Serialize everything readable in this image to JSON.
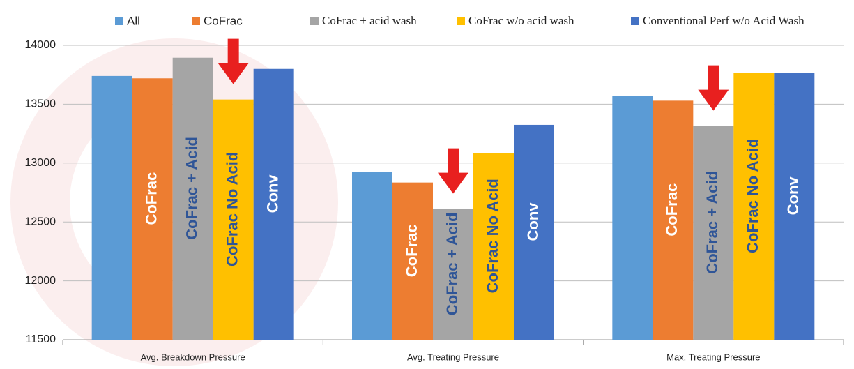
{
  "chart_data": {
    "type": "bar",
    "categories": [
      "Avg. Breakdown Pressure",
      "Avg. Treating Pressure",
      "Max. Treating Pressure"
    ],
    "series": [
      {
        "name": "All",
        "color": "#5b9bd5",
        "values": [
          13740,
          12925,
          13570
        ]
      },
      {
        "name": "CoFrac",
        "color": "#ed7d31",
        "values": [
          13720,
          12835,
          13530
        ],
        "bar_label": "CoFrac"
      },
      {
        "name": "CoFrac + acid wash",
        "color": "#a5a5a5",
        "values": [
          13895,
          12610,
          13315
        ],
        "bar_label": "CoFrac + Acid"
      },
      {
        "name": "CoFrac  w/o acid wash",
        "color": "#ffc000",
        "values": [
          13540,
          13085,
          13765
        ],
        "bar_label": "CoFrac No Acid"
      },
      {
        "name": "Conventional Perf w/o Acid Wash",
        "color": "#4472c4",
        "values": [
          13800,
          13325,
          13765
        ],
        "bar_label": "Conv"
      }
    ],
    "ylim": [
      11500,
      14000
    ],
    "yticks": [
      11500,
      12000,
      12500,
      13000,
      13500,
      14000
    ],
    "grid": true
  }
}
